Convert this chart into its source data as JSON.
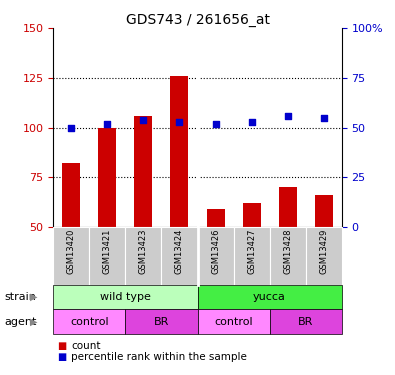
{
  "title": "GDS743 / 261656_at",
  "categories": [
    "GSM13420",
    "GSM13421",
    "GSM13423",
    "GSM13424",
    "GSM13426",
    "GSM13427",
    "GSM13428",
    "GSM13429"
  ],
  "bar_values": [
    82,
    100,
    106,
    126,
    59,
    62,
    70,
    66
  ],
  "dot_values": [
    50,
    52,
    54,
    53,
    52,
    53,
    56,
    55
  ],
  "bar_color": "#cc0000",
  "dot_color": "#0000cc",
  "ylim_left": [
    50,
    150
  ],
  "ylim_right": [
    0,
    100
  ],
  "yticks_left": [
    50,
    75,
    100,
    125,
    150
  ],
  "yticks_right": [
    0,
    25,
    50,
    75,
    100
  ],
  "ytick_labels_right": [
    "0",
    "25",
    "50",
    "75",
    "100%"
  ],
  "hlines": [
    75,
    100,
    125
  ],
  "wt_color": "#bbffbb",
  "yucca_color": "#44ee44",
  "control_color": "#ff88ff",
  "br_color": "#dd44dd",
  "tick_area_color": "#cccccc",
  "legend_count_color": "#cc0000",
  "legend_dot_color": "#0000cc",
  "legend_count_label": "count",
  "legend_dot_label": "percentile rank within the sample",
  "bar_width": 0.5,
  "separator_col": 3.5
}
